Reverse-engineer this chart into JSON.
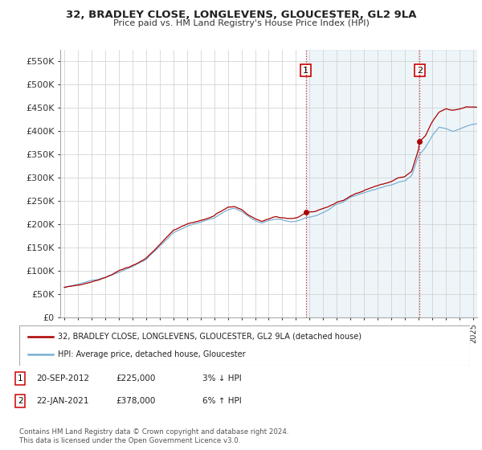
{
  "title": "32, BRADLEY CLOSE, LONGLEVENS, GLOUCESTER, GL2 9LA",
  "subtitle": "Price paid vs. HM Land Registry's House Price Index (HPI)",
  "ylabel_ticks": [
    "£0",
    "£50K",
    "£100K",
    "£150K",
    "£200K",
    "£250K",
    "£300K",
    "£350K",
    "£400K",
    "£450K",
    "£500K",
    "£550K"
  ],
  "ytick_values": [
    0,
    50000,
    100000,
    150000,
    200000,
    250000,
    300000,
    350000,
    400000,
    450000,
    500000,
    550000
  ],
  "xlim_left": 1994.7,
  "xlim_right": 2025.3,
  "ylim": [
    0,
    575000
  ],
  "transaction1_year": 2012.72,
  "transaction1_price": 225000,
  "transaction2_year": 2021.07,
  "transaction2_price": 378000,
  "legend_line1": "32, BRADLEY CLOSE, LONGLEVENS, GLOUCESTER, GL2 9LA (detached house)",
  "legend_line2": "HPI: Average price, detached house, Gloucester",
  "note1_label": "1",
  "note1_date": "20-SEP-2012",
  "note1_price": "£225,000",
  "note1_pct": "3% ↓ HPI",
  "note2_label": "2",
  "note2_date": "22-JAN-2021",
  "note2_price": "£378,000",
  "note2_pct": "6% ↑ HPI",
  "footer": "Contains HM Land Registry data © Crown copyright and database right 2024.\nThis data is licensed under the Open Government Licence v3.0.",
  "property_color": "#aa0000",
  "hpi_color": "#7ab0d4",
  "hpi_fill_color": "#ddeeff",
  "vline_color": "#cc0000",
  "box_color": "#cc0000",
  "grid_color": "#cccccc",
  "bg_color": "#ffffff"
}
